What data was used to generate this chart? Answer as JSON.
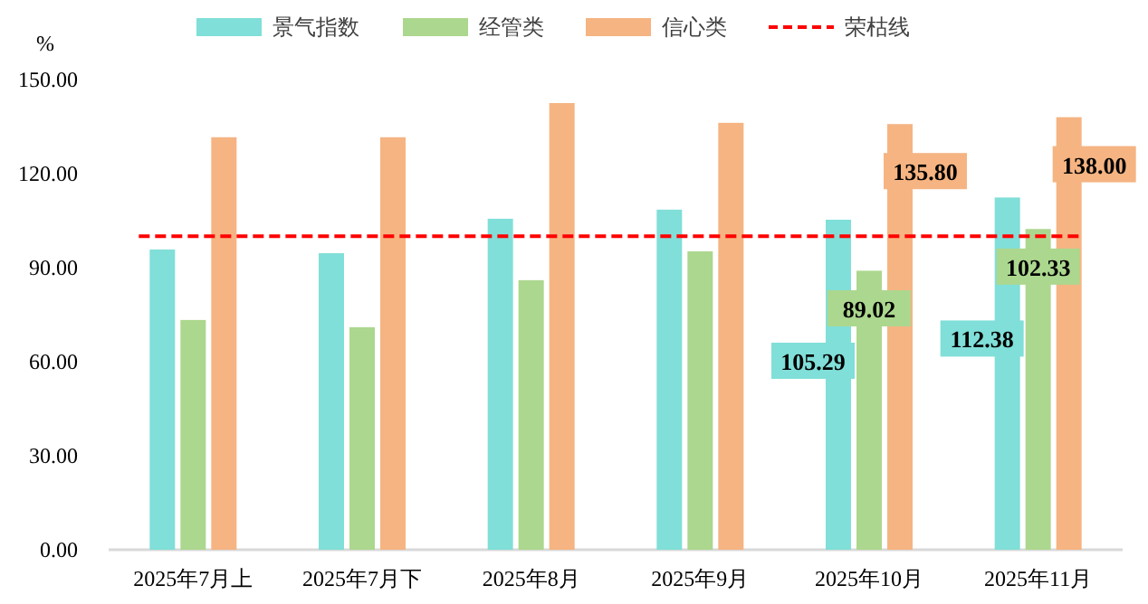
{
  "chart_data": {
    "type": "bar",
    "ylabel": "%",
    "categories": [
      "2025年7月上",
      "2025年7月下",
      "2025年8月",
      "2025年9月",
      "2025年10月",
      "2025年11月"
    ],
    "series": [
      {
        "name": "景气指数",
        "color": "#80dfd8",
        "values": [
          95.8,
          94.6,
          105.6,
          108.5,
          105.29,
          112.38
        ],
        "value_labels": [
          null,
          null,
          null,
          null,
          "105.29",
          "112.38"
        ]
      },
      {
        "name": "经管类",
        "color": "#acd78e",
        "values": [
          73.3,
          71.0,
          86.0,
          95.2,
          89.02,
          102.33
        ],
        "value_labels": [
          null,
          null,
          null,
          null,
          "89.02",
          "102.33"
        ]
      },
      {
        "name": "信心类",
        "color": "#f5b482",
        "values": [
          131.6,
          131.6,
          142.5,
          136.2,
          135.8,
          138.0
        ],
        "value_labels": [
          null,
          null,
          null,
          null,
          "135.80",
          "138.00"
        ]
      }
    ],
    "ref_lines": [
      {
        "axis": "y",
        "value": 100,
        "label": "荣枯线",
        "color": "#ff0000",
        "line_style": "dashed"
      }
    ],
    "ylim": [
      0,
      150
    ],
    "yticks": [
      {
        "value": 0,
        "label": "0.00"
      },
      {
        "value": 30,
        "label": "30.00"
      },
      {
        "value": 60,
        "label": "60.00"
      },
      {
        "value": 90,
        "label": "90.00"
      },
      {
        "value": 120,
        "label": "120.00"
      },
      {
        "value": 150,
        "label": "150.00"
      }
    ],
    "legend": "top",
    "grid": false
  }
}
